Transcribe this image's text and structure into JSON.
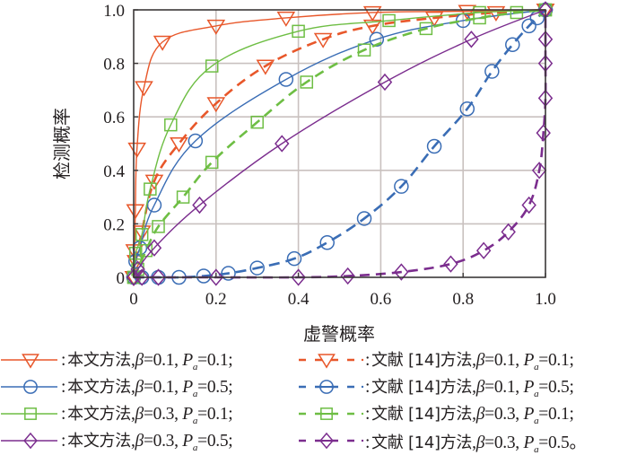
{
  "chart_data": {
    "type": "line",
    "title": "",
    "xlabel": "虚警概率",
    "ylabel": "检测概率",
    "xlim": [
      0,
      1.0
    ],
    "ylim": [
      0,
      1.0
    ],
    "xticks": [
      "0",
      "0.2",
      "0.4",
      "0.6",
      "0.8",
      "1.0"
    ],
    "yticks": [
      "0",
      "0.2",
      "0.4",
      "0.6",
      "0.8",
      "1.0"
    ],
    "xtick_values": [
      0,
      0.2,
      0.4,
      0.6,
      0.8,
      1.0
    ],
    "ytick_values": [
      0,
      0.2,
      0.4,
      0.6,
      0.8,
      1.0
    ],
    "grid": true,
    "legend_placement": "bottom",
    "series": [
      {
        "name": "本文方法, β=0.1, Pa=0.1",
        "color": "#e8572a",
        "dash": "solid",
        "marker": "triangle-down",
        "method": "本文方法",
        "beta": "0.1",
        "pa": "0.1",
        "end": ";",
        "x": [
          0,
          0.002,
          0.004,
          0.008,
          0.025,
          0.07,
          0.2,
          0.37,
          0.58,
          0.81,
          1.0
        ],
        "y": [
          0,
          0.1,
          0.25,
          0.48,
          0.71,
          0.88,
          0.94,
          0.97,
          0.99,
          0.995,
          1.0
        ]
      },
      {
        "name": "文献 [14]方法, β=0.1, Pa=0.1",
        "color": "#e8572a",
        "dash": "dash",
        "marker": "triangle-down",
        "method": "文献 [14]方法",
        "beta": "0.1",
        "pa": "0.1",
        "end": ";",
        "x": [
          0,
          0.005,
          0.02,
          0.05,
          0.11,
          0.2,
          0.32,
          0.46,
          0.58,
          0.73,
          0.88,
          1.0
        ],
        "y": [
          0,
          0.06,
          0.17,
          0.36,
          0.5,
          0.65,
          0.79,
          0.89,
          0.94,
          0.97,
          0.99,
          1.0
        ]
      },
      {
        "name": "本文方法, β=0.1, Pa=0.5",
        "color": "#3a6db5",
        "dash": "solid",
        "marker": "circle",
        "method": "本文方法",
        "beta": "0.1",
        "pa": "0.5",
        "end": ";",
        "x": [
          0,
          0.005,
          0.015,
          0.05,
          0.15,
          0.37,
          0.59,
          0.8,
          1.0
        ],
        "y": [
          0,
          0.06,
          0.11,
          0.27,
          0.51,
          0.74,
          0.89,
          0.96,
          1.0
        ]
      },
      {
        "name": "文献 [14]方法, β=0.1, Pa=0.5",
        "color": "#3a6db5",
        "dash": "dashdot",
        "marker": "circle-bar",
        "method": "文献 [14]方法",
        "beta": "0.1",
        "pa": "0.5",
        "end": ";",
        "x": [
          0,
          0.02,
          0.06,
          0.11,
          0.17,
          0.23,
          0.3,
          0.39,
          0.47,
          0.56,
          0.65,
          0.73,
          0.81,
          0.87,
          0.92,
          0.96,
          0.98,
          1.0
        ],
        "y": [
          0,
          0.0,
          0.0,
          0.0,
          0.005,
          0.015,
          0.035,
          0.07,
          0.13,
          0.22,
          0.34,
          0.49,
          0.63,
          0.77,
          0.87,
          0.94,
          0.97,
          1.0
        ]
      },
      {
        "name": "本文方法, β=0.3, Pa=0.1",
        "color": "#6ebe44",
        "dash": "solid",
        "marker": "square",
        "method": "本文方法",
        "beta": "0.3",
        "pa": "0.1",
        "end": ";",
        "x": [
          0,
          0.005,
          0.02,
          0.04,
          0.09,
          0.19,
          0.4,
          0.62,
          0.84,
          1.0
        ],
        "y": [
          0,
          0.09,
          0.16,
          0.33,
          0.57,
          0.79,
          0.92,
          0.96,
          0.99,
          1.0
        ]
      },
      {
        "name": "文献 [14]方法, β=0.3, Pa=0.1",
        "color": "#6ebe44",
        "dash": "dash",
        "marker": "square-bar",
        "method": "文献 [14]方法",
        "beta": "0.3",
        "pa": "0.1",
        "end": ";",
        "x": [
          0,
          0.01,
          0.03,
          0.06,
          0.12,
          0.19,
          0.3,
          0.42,
          0.56,
          0.71,
          0.84,
          0.93,
          1.0
        ],
        "y": [
          0,
          0.03,
          0.1,
          0.19,
          0.3,
          0.43,
          0.58,
          0.73,
          0.85,
          0.93,
          0.97,
          0.99,
          1.0
        ]
      },
      {
        "name": "本文方法, β=0.3, Pa=0.5",
        "color": "#7b2d8e",
        "dash": "solid",
        "marker": "diamond",
        "method": "本文方法",
        "beta": "0.3",
        "pa": "0.5",
        "end": ";",
        "x": [
          0,
          0.01,
          0.05,
          0.16,
          0.36,
          0.61,
          0.82,
          1.0
        ],
        "y": [
          0,
          0.03,
          0.11,
          0.27,
          0.5,
          0.73,
          0.89,
          1.0
        ]
      },
      {
        "name": "文献 [14]方法, β=0.3, Pa=0.5",
        "color": "#7b2d8e",
        "dash": "dash",
        "marker": "diamond-bar",
        "method": "文献 [14]方法",
        "beta": "0.3",
        "pa": "0.5",
        "end": "。",
        "x": [
          0,
          0.02,
          0.06,
          0.2,
          0.4,
          0.52,
          0.65,
          0.77,
          0.85,
          0.91,
          0.96,
          0.985,
          0.995,
          1.0,
          1.0,
          1.0,
          1.0
        ],
        "y": [
          0,
          0.0,
          0.0,
          0.0,
          0.0,
          0.005,
          0.02,
          0.05,
          0.1,
          0.17,
          0.27,
          0.4,
          0.54,
          0.67,
          0.8,
          0.89,
          1.0
        ]
      }
    ]
  },
  "legend": {
    "colon": ":",
    "beta_symbol": "β",
    "equals": "=",
    "comma": ",",
    "pa_symbol": "P",
    "pa_sub": "a"
  }
}
